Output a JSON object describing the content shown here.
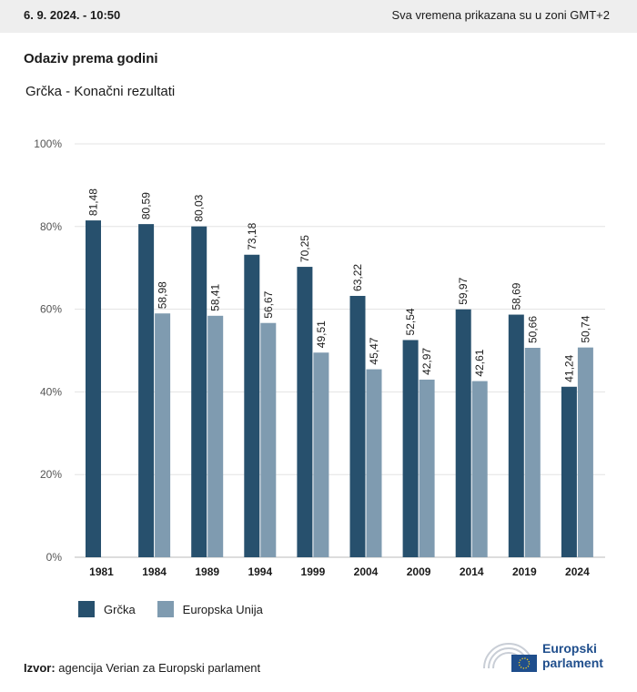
{
  "header": {
    "date": "6. 9. 2024. - 10:50",
    "timezone_note": "Sva vremena prikazana su u zoni GMT+2"
  },
  "title": "Odaziv prema godini",
  "subtitle": "Grčka - Konačni rezultati",
  "colors": {
    "greece": "#27506d",
    "eu": "#7f9bb0",
    "grid": "#e3e3e3"
  },
  "chart_data": {
    "type": "bar",
    "categories": [
      "1981",
      "1984",
      "1989",
      "1994",
      "1999",
      "2004",
      "2009",
      "2014",
      "2019",
      "2024"
    ],
    "series": [
      {
        "name": "Grčka",
        "values": [
          81.48,
          80.59,
          80.03,
          73.18,
          70.25,
          63.22,
          52.54,
          59.97,
          58.69,
          41.24
        ],
        "labels": [
          "81,48",
          "80,59",
          "80,03",
          "73,18",
          "70,25",
          "63,22",
          "52,54",
          "59,97",
          "58,69",
          "41,24"
        ]
      },
      {
        "name": "Europska Unija",
        "values": [
          null,
          58.98,
          58.41,
          56.67,
          49.51,
          45.47,
          42.97,
          42.61,
          50.66,
          50.74
        ],
        "labels": [
          "",
          "58,98",
          "58,41",
          "56,67",
          "49,51",
          "45,47",
          "42,97",
          "42,61",
          "50,66",
          "50,74"
        ]
      }
    ],
    "yticks": [
      "0%",
      "20%",
      "40%",
      "60%",
      "80%",
      "100%"
    ],
    "ylim": [
      0,
      100
    ],
    "grid": true,
    "legend": "bottom-left"
  },
  "legend": {
    "greece": "Grčka",
    "eu": "Europska Unija"
  },
  "source": {
    "label": "Izvor:",
    "text": " agencija Verian za Europski parlament"
  },
  "logo": {
    "line1": "Europski",
    "line2": "parlament"
  }
}
